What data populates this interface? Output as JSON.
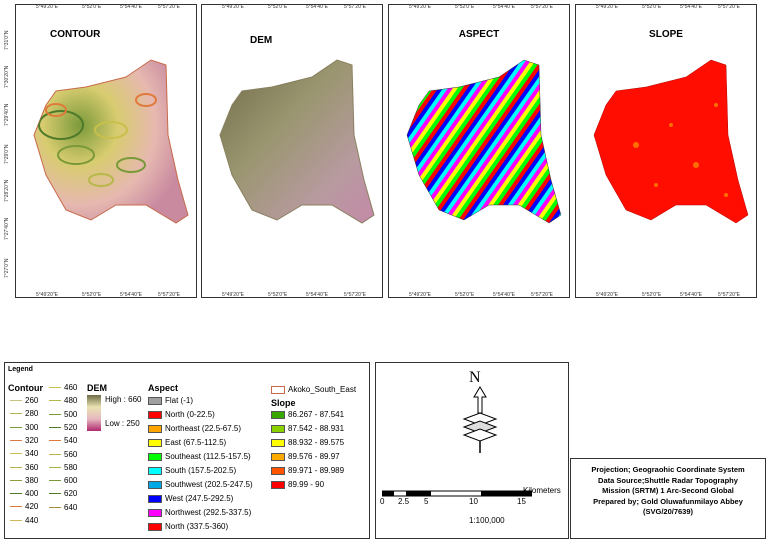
{
  "panels": [
    {
      "id": "contour",
      "title": "CONTOUR"
    },
    {
      "id": "dem",
      "title": "DEM"
    },
    {
      "id": "aspect",
      "title": "ASPECT"
    },
    {
      "id": "slope",
      "title": "SLOPE"
    }
  ],
  "coords": {
    "top": [
      "5°49'20\"E",
      "5°52'0\"E",
      "5°54'40\"E",
      "5°57'20\"E"
    ],
    "left": [
      "7°31'0\"N",
      "7°30'20\"N",
      "7°29'40\"N",
      "7°29'0\"N",
      "7°28'20\"N",
      "7°27'40\"N",
      "7°27'0\"N"
    ]
  },
  "legend": {
    "title": "Legend",
    "contour_title": "Contour",
    "contours_col1": [
      "260",
      "280",
      "300",
      "320",
      "340",
      "360",
      "380",
      "400",
      "420",
      "440"
    ],
    "contours_col2": [
      "460",
      "480",
      "500",
      "520",
      "540",
      "560",
      "580",
      "600",
      "620",
      "640"
    ],
    "contour_colors_col1": [
      "#c6c27a",
      "#b5b54f",
      "#7a9c3a",
      "#d97a4a",
      "#c8c04a",
      "#b8b84a",
      "#8aa03a",
      "#4e7a2a",
      "#e07a3a",
      "#c8b85a"
    ],
    "contour_colors_col2": [
      "#c8c04a",
      "#b0b84a",
      "#7a9a3a",
      "#4e7a2a",
      "#e07a3a",
      "#c0b050",
      "#a8b048",
      "#7a9a3a",
      "#4e7a2a",
      "#a88c3a"
    ],
    "dem_title": "DEM",
    "dem_high": "High : 660",
    "dem_low": "Low : 250",
    "aspect_title": "Aspect",
    "aspect_items": [
      {
        "label": "Flat (-1)",
        "color": "#a0a0a0"
      },
      {
        "label": "North (0-22.5)",
        "color": "#ff0000"
      },
      {
        "label": "Northeast (22.5-67.5)",
        "color": "#ffa500"
      },
      {
        "label": "East (67.5-112.5)",
        "color": "#ffff00"
      },
      {
        "label": "Southeast (112.5-157.5)",
        "color": "#00ff00"
      },
      {
        "label": "South (157.5-202.5)",
        "color": "#00ffff"
      },
      {
        "label": "Southwest (202.5-247.5)",
        "color": "#00a8e6"
      },
      {
        "label": "West (247.5-292.5)",
        "color": "#0000ff"
      },
      {
        "label": "Northwest (292.5-337.5)",
        "color": "#ff00ff"
      },
      {
        "label": "North (337.5-360)",
        "color": "#ff0000"
      }
    ],
    "boundary_label": "Akoko_South_East",
    "slope_title": "Slope",
    "slope_items": [
      {
        "label": "86.267 - 87.541",
        "color": "#38a800"
      },
      {
        "label": "87.542 - 88.931",
        "color": "#8bd100"
      },
      {
        "label": "88.932 - 89.575",
        "color": "#ffff00"
      },
      {
        "label": "89.576 - 89.97",
        "color": "#ffaa00"
      },
      {
        "label": "89.971 - 89.989",
        "color": "#ff5500"
      },
      {
        "label": "89.99 - 90",
        "color": "#ff0000"
      }
    ]
  },
  "north": {
    "letter": "N"
  },
  "scale": {
    "ticks": [
      "0",
      "2.5",
      "5",
      "10",
      "15"
    ],
    "unit": "Kilometers",
    "ratio": "1:100,000"
  },
  "info": {
    "line1": "Projection; Geograohic Coordinate System",
    "line2": "Data Source;Shuttle Radar Topography",
    "line3": "Mission (SRTM) 1 Arc-Second Global",
    "line4": "Prepared by; Gold Oluwafunmilayo Abbey",
    "line5": "(SVG/20/7639)"
  }
}
